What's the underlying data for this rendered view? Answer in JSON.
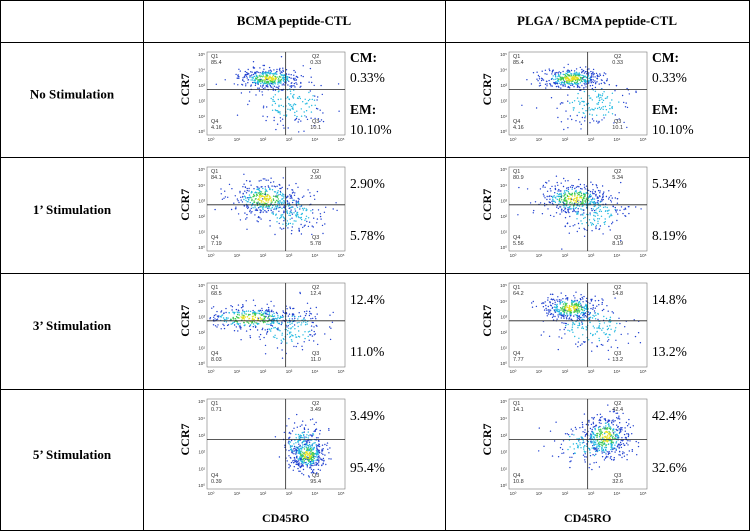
{
  "header": {
    "columns": [
      "BCMA peptide-CTL",
      "PLGA / BCMA peptide-CTL"
    ]
  },
  "axis": {
    "y_label": "CCR7",
    "x_label": "CD45RO",
    "ticks": [
      "10⁰",
      "10¹",
      "10²",
      "10³",
      "10⁴",
      "10⁵"
    ]
  },
  "rows": [
    {
      "label": "No Stimulation",
      "cells": [
        {
          "quadrants": [
            {
              "name": "Q1",
              "value": "85.4"
            },
            {
              "name": "Q2",
              "value": "0.33"
            },
            {
              "name": "Q4",
              "value": "4.16"
            },
            {
              "name": "Q3",
              "value": "10.1"
            }
          ],
          "annotations": [
            "CM:",
            "0.33%",
            "EM:",
            "10.10%"
          ]
        },
        {
          "quadrants": [
            {
              "name": "Q1",
              "value": "85.4"
            },
            {
              "name": "Q2",
              "value": "0.33"
            },
            {
              "name": "Q4",
              "value": "4.16"
            },
            {
              "name": "Q3",
              "value": "10.1"
            }
          ],
          "annotations": [
            "CM:",
            "0.33%",
            "EM:",
            "10.10%"
          ]
        }
      ]
    },
    {
      "label": "1’ Stimulation",
      "cells": [
        {
          "quadrants": [
            {
              "name": "Q1",
              "value": "84.1"
            },
            {
              "name": "Q2",
              "value": "2.90"
            },
            {
              "name": "Q4",
              "value": "7.19"
            },
            {
              "name": "Q3",
              "value": "5.78"
            }
          ],
          "annotations": [
            "2.90%",
            "5.78%"
          ]
        },
        {
          "quadrants": [
            {
              "name": "Q1",
              "value": "80.9"
            },
            {
              "name": "Q2",
              "value": "5.34"
            },
            {
              "name": "Q4",
              "value": "5.56"
            },
            {
              "name": "Q3",
              "value": "8.19"
            }
          ],
          "annotations": [
            "5.34%",
            "8.19%"
          ]
        }
      ]
    },
    {
      "label": "3’ Stimulation",
      "cells": [
        {
          "quadrants": [
            {
              "name": "Q1",
              "value": "68.5"
            },
            {
              "name": "Q2",
              "value": "12.4"
            },
            {
              "name": "Q4",
              "value": "8.03"
            },
            {
              "name": "Q3",
              "value": "11.0"
            }
          ],
          "annotations": [
            "12.4%",
            "11.0%"
          ]
        },
        {
          "quadrants": [
            {
              "name": "Q1",
              "value": "64.2"
            },
            {
              "name": "Q2",
              "value": "14.8"
            },
            {
              "name": "Q4",
              "value": "7.77"
            },
            {
              "name": "Q3",
              "value": "13.2"
            }
          ],
          "annotations": [
            "14.8%",
            "13.2%"
          ]
        }
      ]
    },
    {
      "label": "5’ Stimulation",
      "cells": [
        {
          "quadrants": [
            {
              "name": "Q1",
              "value": "0.71"
            },
            {
              "name": "Q2",
              "value": "3.49"
            },
            {
              "name": "Q4",
              "value": "0.39"
            },
            {
              "name": "Q3",
              "value": "95.4"
            }
          ],
          "annotations": [
            "3.49%",
            "95.4%"
          ]
        },
        {
          "quadrants": [
            {
              "name": "Q1",
              "value": "14.1"
            },
            {
              "name": "Q2",
              "value": "42.4"
            },
            {
              "name": "Q4",
              "value": "10.8"
            },
            {
              "name": "Q3",
              "value": "32.6"
            }
          ],
          "annotations": [
            "42.4%",
            "32.6%"
          ]
        }
      ]
    }
  ]
}
